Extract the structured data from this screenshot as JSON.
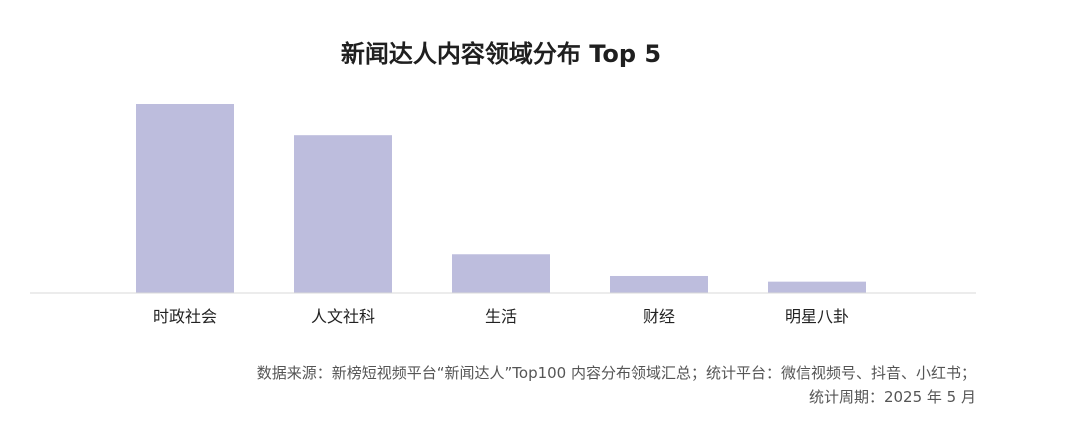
{
  "chart_data": {
    "type": "bar",
    "title": "新闻达人内容领域分布 Top 5",
    "categories": [
      "时政社会",
      "人文社科",
      "生活",
      "财经",
      "明星八卦"
    ],
    "values": [
      100,
      83.5,
      20.5,
      9,
      6
    ],
    "bar_color": "#bdbddd",
    "axis_color": "#d9d9d9",
    "grid": false,
    "legend": "none",
    "ylim": [
      0,
      100
    ]
  },
  "footer": {
    "source": "数据来源：新榜短视频平台“新闻达人”Top100 内容分布领域汇总；统计平台：微信视频号、抖音、小红书；",
    "period": "统计周期：2025 年 5 月"
  }
}
